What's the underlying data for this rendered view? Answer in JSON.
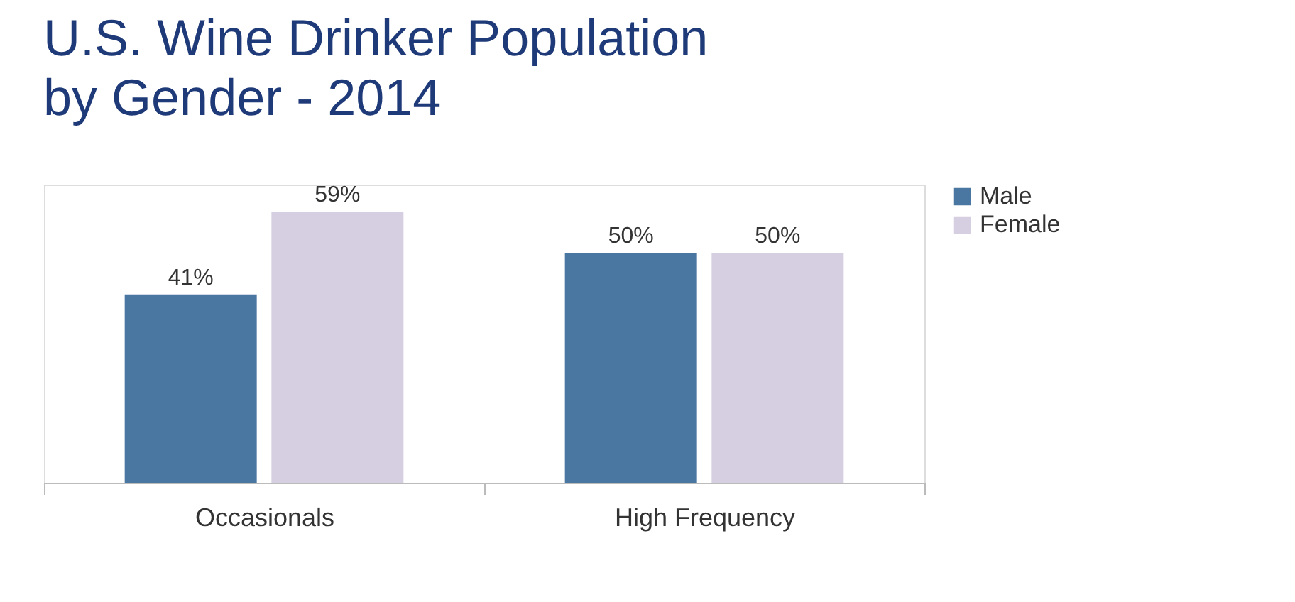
{
  "chart_data": {
    "type": "bar",
    "title": "U.S. Wine Drinker Population by Gender - 2014",
    "categories": [
      "Occasionals",
      "High Frequency"
    ],
    "series": [
      {
        "name": "Male",
        "color": "#4a76a2",
        "values": [
          41,
          50
        ],
        "value_labels": [
          "41%",
          "50%"
        ]
      },
      {
        "name": "Female",
        "color": "#d5cfe1",
        "values": [
          59,
          50
        ],
        "value_labels": [
          "59%",
          "50%"
        ]
      }
    ],
    "tick_labels": "x",
    "legend": "right"
  }
}
